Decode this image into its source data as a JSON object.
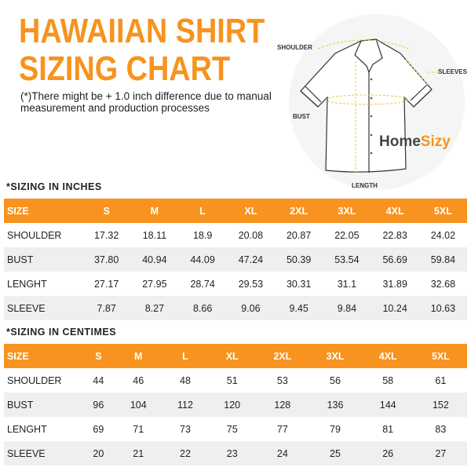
{
  "title_line1": "HAWAIIAN SHIRT",
  "title_line2": "SIZING CHART",
  "note": "(*)There might be + 1.0 inch difference due to manual measurement and production processes",
  "diagram": {
    "shoulder": "SHOULDER",
    "sleeves": "SLEEVES",
    "bust": "BUST",
    "length": "LENGTH",
    "brand_home": "Home",
    "brand_sizy": "Sizy"
  },
  "colors": {
    "accent": "#f7931e",
    "row_alt": "#efefef"
  },
  "inches": {
    "title": "*SIZING IN INCHES",
    "headers": [
      "SIZE",
      "S",
      "M",
      "L",
      "XL",
      "2XL",
      "3XL",
      "4XL",
      "5XL"
    ],
    "rows": [
      [
        "SHOULDER",
        "17.32",
        "18.11",
        "18.9",
        "20.08",
        "20.87",
        "22.05",
        "22.83",
        "24.02"
      ],
      [
        "BUST",
        "37.80",
        "40.94",
        "44.09",
        "47.24",
        "50.39",
        "53.54",
        "56.69",
        "59.84"
      ],
      [
        "LENGHT",
        "27.17",
        "27.95",
        "28.74",
        "29.53",
        "30.31",
        "31.1",
        "31.89",
        "32.68"
      ],
      [
        "SLEEVE",
        "7.87",
        "8.27",
        "8.66",
        "9.06",
        "9.45",
        "9.84",
        "10.24",
        "10.63"
      ]
    ]
  },
  "cm": {
    "title": "*SIZING IN CENTIMES",
    "headers": [
      "SIZE",
      "S",
      "M",
      "L",
      "XL",
      "2XL",
      "3XL",
      "4XL",
      "5XL"
    ],
    "rows": [
      [
        "SHOULDER",
        "44",
        "46",
        "48",
        "51",
        "53",
        "56",
        "58",
        "61"
      ],
      [
        "BUST",
        "96",
        "104",
        "112",
        "120",
        "128",
        "136",
        "144",
        "152"
      ],
      [
        "LENGHT",
        "69",
        "71",
        "73",
        "75",
        "77",
        "79",
        "81",
        "83"
      ],
      [
        "SLEEVE",
        "20",
        "21",
        "22",
        "23",
        "24",
        "25",
        "26",
        "27"
      ]
    ]
  }
}
